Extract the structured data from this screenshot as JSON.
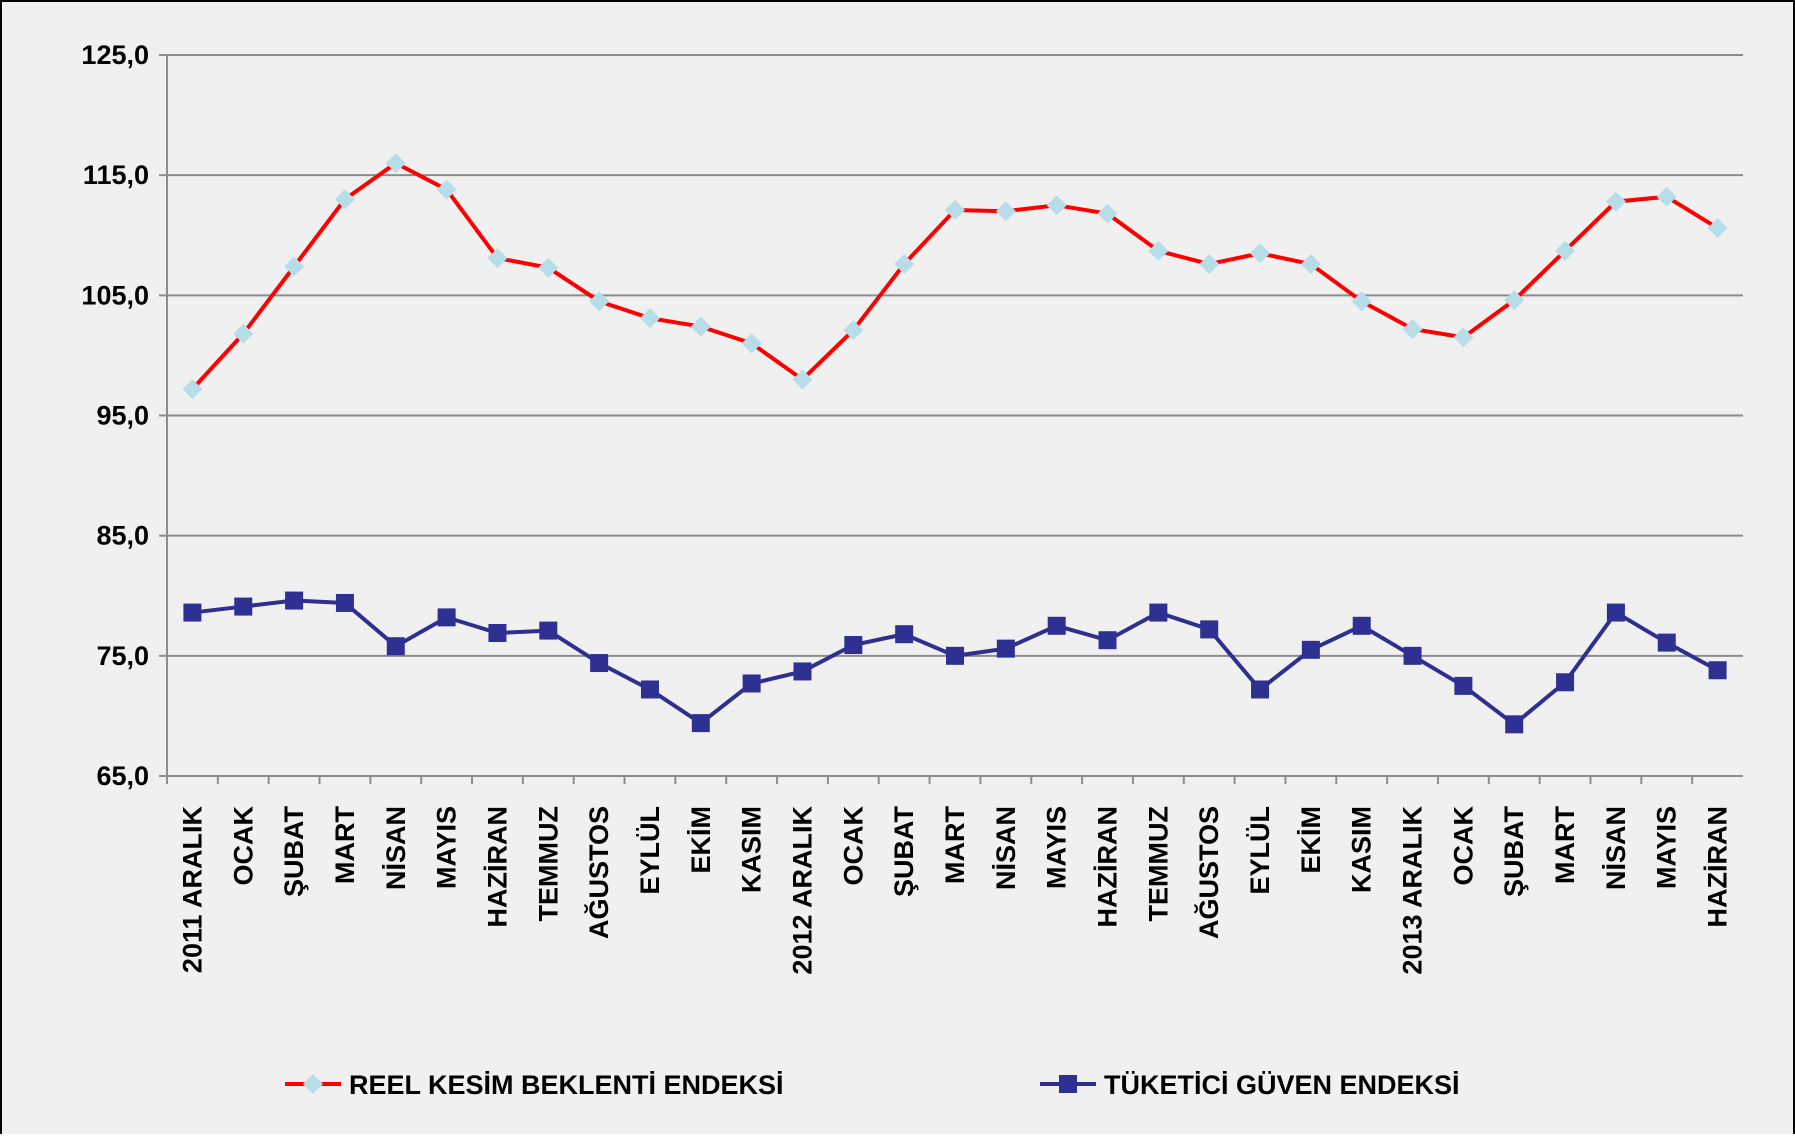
{
  "chart_data": {
    "type": "line",
    "categories": [
      "2011 ARALIK",
      "OCAK",
      "ŞUBAT",
      "MART",
      "NİSAN",
      "MAYIS",
      "HAZİRAN",
      "TEMMUZ",
      "AĞUSTOS",
      "EYLÜL",
      "EKİM",
      "KASIM",
      "2012 ARALIK",
      "OCAK",
      "ŞUBAT",
      "MART",
      "NİSAN",
      "MAYIS",
      "HAZİRAN",
      "TEMMUZ",
      "AĞUSTOS",
      "EYLÜL",
      "EKİM",
      "KASIM",
      "2013 ARALIK",
      "OCAK",
      "ŞUBAT",
      "MART",
      "NİSAN",
      "MAYIS",
      "HAZİRAN"
    ],
    "series": [
      {
        "name": "REEL KESİM BEKLENTİ ENDEKSİ",
        "color": "#ff0000",
        "marker": "diamond",
        "marker_color": "#b7dde8",
        "values": [
          97.2,
          101.8,
          107.4,
          113.0,
          116.0,
          113.8,
          108.1,
          107.3,
          104.5,
          103.1,
          102.4,
          101.0,
          98.0,
          102.1,
          107.6,
          112.1,
          112.0,
          112.5,
          111.8,
          108.7,
          107.6,
          108.5,
          107.6,
          104.5,
          102.2,
          101.5,
          104.6,
          108.7,
          112.8,
          113.2,
          110.6
        ]
      },
      {
        "name": "TÜKETİCİ GÜVEN ENDEKSİ",
        "color": "#2e2f8f",
        "marker": "square",
        "marker_color": "#2e3192",
        "values": [
          78.6,
          79.1,
          79.6,
          79.4,
          75.8,
          78.2,
          76.9,
          77.1,
          74.4,
          72.2,
          69.4,
          72.7,
          73.7,
          75.9,
          76.8,
          75.0,
          75.6,
          77.5,
          76.3,
          78.6,
          77.2,
          72.2,
          75.5,
          77.5,
          75.0,
          72.5,
          69.3,
          72.8,
          78.6,
          76.1,
          73.8
        ]
      }
    ],
    "ylim": [
      65,
      125
    ],
    "yticks": [
      {
        "value": 65,
        "label": "65,0"
      },
      {
        "value": 75,
        "label": "75,0"
      },
      {
        "value": 85,
        "label": "85,0"
      },
      {
        "value": 95,
        "label": "95,0"
      },
      {
        "value": 105,
        "label": "105,0"
      },
      {
        "value": 115,
        "label": "115,0"
      },
      {
        "value": 125,
        "label": "125,0"
      }
    ],
    "grid": true,
    "legend": "bottom"
  }
}
